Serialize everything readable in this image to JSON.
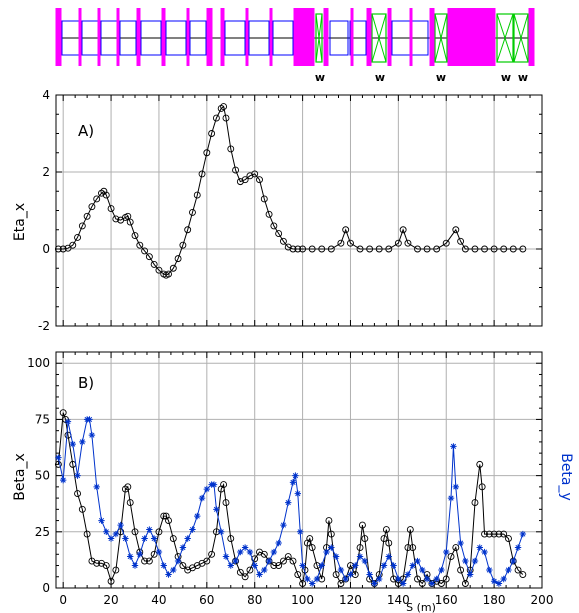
{
  "lattice": {
    "magnet_color": "#ff00ff",
    "quad_color": "#0000ff",
    "wiggler_color": "#00cc00",
    "wiggler_labels": [
      "w",
      "w",
      "w",
      "w",
      "w"
    ]
  },
  "chart_data": [
    {
      "type": "line",
      "panel_label": "A)",
      "title": "",
      "xlabel": "",
      "ylabel": "Eta_x",
      "xlim": [
        -3,
        200
      ],
      "ylim": [
        -2,
        4
      ],
      "xticks": [
        0,
        20,
        40,
        60,
        80,
        100,
        120,
        140,
        160,
        180,
        200
      ],
      "yticks": [
        -2,
        0,
        2,
        4
      ],
      "grid": true,
      "series": [
        {
          "color": "#000000",
          "marker": "circle",
          "x": [
            -2,
            0,
            2,
            4,
            6,
            8,
            10,
            12,
            14,
            16,
            17,
            18,
            20,
            22,
            24,
            26,
            27,
            28,
            30,
            32,
            34,
            36,
            38,
            40,
            42,
            43,
            44,
            46,
            48,
            50,
            52,
            54,
            56,
            58,
            60,
            62,
            64,
            66,
            67,
            68,
            70,
            72,
            74,
            76,
            78,
            80,
            82,
            84,
            86,
            88,
            90,
            92,
            94,
            96,
            98,
            100,
            104,
            108,
            112,
            116,
            118,
            120,
            124,
            128,
            132,
            136,
            140,
            142,
            144,
            148,
            152,
            156,
            160,
            164,
            166,
            168,
            172,
            176,
            180,
            184,
            188,
            192
          ],
          "y": [
            0.0,
            0.0,
            0.02,
            0.1,
            0.3,
            0.6,
            0.85,
            1.1,
            1.3,
            1.45,
            1.5,
            1.4,
            1.05,
            0.78,
            0.75,
            0.82,
            0.85,
            0.7,
            0.35,
            0.1,
            -0.05,
            -0.2,
            -0.4,
            -0.55,
            -0.65,
            -0.68,
            -0.65,
            -0.5,
            -0.25,
            0.1,
            0.5,
            0.95,
            1.4,
            1.95,
            2.5,
            3.0,
            3.4,
            3.65,
            3.7,
            3.4,
            2.6,
            2.05,
            1.75,
            1.8,
            1.9,
            1.95,
            1.8,
            1.3,
            0.9,
            0.6,
            0.4,
            0.2,
            0.05,
            0.0,
            0.0,
            0.0,
            0.0,
            0.0,
            0.0,
            0.15,
            0.5,
            0.15,
            0.0,
            0.0,
            0.0,
            0.0,
            0.15,
            0.5,
            0.15,
            0.0,
            0.0,
            0.0,
            0.15,
            0.5,
            0.2,
            0.0,
            0.0,
            0.0,
            0.0,
            0.0,
            0.0,
            0.0
          ]
        }
      ]
    },
    {
      "type": "line",
      "panel_label": "B)",
      "title": "",
      "xlabel": "S (m)",
      "ylabel": "Beta_x",
      "ylabel_right": "Beta_y",
      "xlim": [
        -3,
        200
      ],
      "ylim": [
        0,
        105
      ],
      "xticks": [
        0,
        20,
        40,
        60,
        80,
        100,
        120,
        140,
        160,
        180,
        200
      ],
      "yticks": [
        0,
        25,
        50,
        75,
        100
      ],
      "grid": true,
      "series": [
        {
          "name": "Beta_x",
          "color": "#000000",
          "marker": "circle",
          "x": [
            -2,
            0,
            1,
            2,
            4,
            6,
            8,
            10,
            12,
            14,
            16,
            18,
            20,
            22,
            24,
            26,
            27,
            28,
            30,
            32,
            34,
            36,
            38,
            40,
            42,
            43,
            44,
            46,
            48,
            50,
            52,
            54,
            56,
            58,
            60,
            62,
            64,
            66,
            67,
            68,
            70,
            72,
            74,
            76,
            78,
            80,
            82,
            84,
            86,
            88,
            90,
            92,
            94,
            96,
            98,
            100,
            101,
            102,
            103,
            104,
            106,
            108,
            110,
            111,
            112,
            114,
            116,
            118,
            120,
            122,
            124,
            125,
            126,
            128,
            130,
            132,
            134,
            135,
            136,
            138,
            140,
            142,
            144,
            145,
            146,
            148,
            150,
            152,
            154,
            156,
            158,
            160,
            162,
            164,
            166,
            168,
            170,
            172,
            174,
            175,
            176,
            178,
            180,
            182,
            184,
            186,
            188,
            190,
            192
          ],
          "y": [
            55,
            78,
            75,
            68,
            55,
            42,
            35,
            24,
            12,
            11,
            11,
            10,
            3,
            8,
            25,
            44,
            45,
            38,
            25,
            16,
            12,
            12,
            15,
            25,
            32,
            32,
            30,
            22,
            14,
            10,
            8,
            9,
            10,
            11,
            12,
            15,
            25,
            44,
            46,
            38,
            22,
            12,
            7,
            5,
            8,
            13,
            16,
            15,
            12,
            10,
            10,
            12,
            14,
            12,
            6,
            2,
            8,
            20,
            22,
            18,
            10,
            4,
            18,
            30,
            24,
            6,
            2,
            4,
            10,
            6,
            18,
            28,
            22,
            4,
            2,
            6,
            22,
            26,
            20,
            4,
            2,
            4,
            18,
            26,
            18,
            4,
            2,
            6,
            2,
            3,
            2,
            4,
            14,
            18,
            8,
            2,
            8,
            38,
            55,
            45,
            24,
            24,
            24,
            24,
            24,
            22,
            12,
            8,
            6
          ]
        },
        {
          "name": "Beta_y",
          "color": "#0033cc",
          "marker": "star",
          "x": [
            -2,
            0,
            2,
            4,
            6,
            8,
            10,
            11,
            12,
            14,
            16,
            18,
            20,
            22,
            24,
            26,
            28,
            30,
            32,
            34,
            36,
            38,
            40,
            42,
            44,
            46,
            48,
            50,
            52,
            54,
            56,
            58,
            60,
            62,
            63,
            64,
            66,
            68,
            70,
            72,
            74,
            76,
            78,
            80,
            82,
            84,
            86,
            88,
            90,
            92,
            94,
            96,
            97,
            98,
            99,
            100,
            102,
            104,
            106,
            108,
            110,
            112,
            114,
            116,
            118,
            120,
            122,
            124,
            126,
            128,
            130,
            132,
            134,
            136,
            138,
            140,
            142,
            144,
            146,
            148,
            150,
            152,
            154,
            156,
            158,
            160,
            162,
            163,
            164,
            166,
            168,
            170,
            172,
            174,
            176,
            178,
            180,
            182,
            184,
            186,
            188,
            190,
            192
          ],
          "y": [
            58,
            48,
            74,
            64,
            50,
            65,
            75,
            75,
            68,
            45,
            30,
            25,
            22,
            24,
            28,
            22,
            14,
            10,
            15,
            22,
            26,
            22,
            16,
            10,
            6,
            8,
            12,
            18,
            22,
            26,
            32,
            40,
            44,
            46,
            46,
            35,
            25,
            14,
            10,
            12,
            16,
            18,
            16,
            10,
            6,
            8,
            12,
            16,
            20,
            28,
            38,
            47,
            50,
            42,
            25,
            10,
            4,
            2,
            4,
            10,
            16,
            18,
            14,
            8,
            4,
            6,
            10,
            14,
            12,
            6,
            2,
            4,
            10,
            14,
            10,
            4,
            2,
            6,
            10,
            12,
            8,
            4,
            2,
            4,
            8,
            16,
            40,
            63,
            45,
            20,
            12,
            6,
            12,
            18,
            16,
            8,
            3,
            2,
            4,
            8,
            12,
            18,
            24
          ]
        }
      ]
    }
  ]
}
